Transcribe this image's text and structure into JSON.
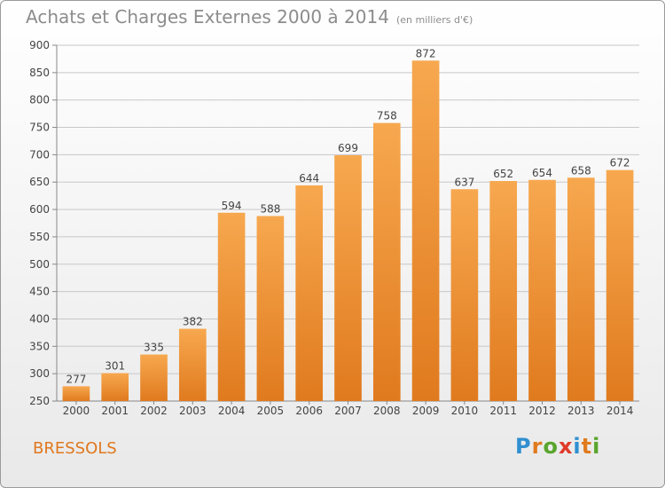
{
  "header": {
    "title": "Achats et Charges Externes 2000 à 2014",
    "unit": "(en milliers d'€)"
  },
  "footer": {
    "commune": "BRESSOLS",
    "logo_letters": [
      {
        "char": "P",
        "color": "#2f8fd0"
      },
      {
        "char": "r",
        "color": "#e07a1e"
      },
      {
        "char": "o",
        "color": "#59a52c"
      },
      {
        "char": "x",
        "color": "#e03a2a"
      },
      {
        "char": "i",
        "color": "#2f8fd0"
      },
      {
        "char": "t",
        "color": "#e07a1e"
      },
      {
        "char": "i",
        "color": "#59a52c"
      }
    ]
  },
  "colors": {
    "bar_light": "#f7a84f",
    "bar_dark": "#e07a1e",
    "grid": "#c8c8c8",
    "text": "#444444"
  },
  "chart_data": {
    "type": "bar",
    "title": "Achats et Charges Externes 2000 à 2014",
    "subtitle": "(en milliers d'€)",
    "categories": [
      "2000",
      "2001",
      "2002",
      "2003",
      "2004",
      "2005",
      "2006",
      "2007",
      "2008",
      "2009",
      "2010",
      "2011",
      "2012",
      "2013",
      "2014"
    ],
    "values": [
      277,
      301,
      335,
      382,
      594,
      588,
      644,
      699,
      758,
      872,
      637,
      652,
      654,
      658,
      672
    ],
    "ylim": [
      250,
      900
    ],
    "yticks": [
      250,
      300,
      350,
      400,
      450,
      500,
      550,
      600,
      650,
      700,
      750,
      800,
      850,
      900
    ],
    "grid": true,
    "xlabel": "",
    "ylabel": ""
  }
}
